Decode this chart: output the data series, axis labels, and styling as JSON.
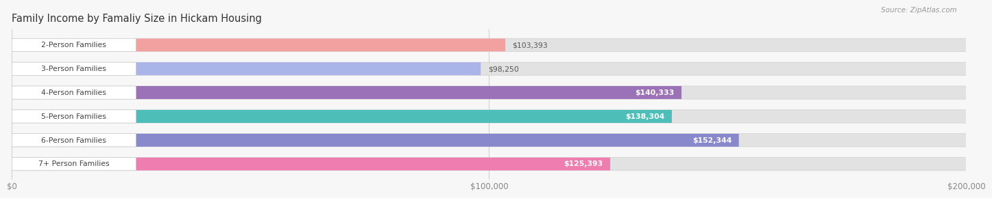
{
  "title": "Family Income by Famaliy Size in Hickam Housing",
  "source": "Source: ZipAtlas.com",
  "categories": [
    "2-Person Families",
    "3-Person Families",
    "4-Person Families",
    "5-Person Families",
    "6-Person Families",
    "7+ Person Families"
  ],
  "values": [
    103393,
    98250,
    140333,
    138304,
    152344,
    125393
  ],
  "bar_colors": [
    "#f2a0a0",
    "#aab4e8",
    "#9b72b8",
    "#4dbfb8",
    "#8888cc",
    "#f07db0"
  ],
  "label_colors": [
    "#444444",
    "#444444",
    "#ffffff",
    "#ffffff",
    "#ffffff",
    "#ffffff"
  ],
  "value_labels": [
    "$103,393",
    "$98,250",
    "$140,333",
    "$138,304",
    "$152,344",
    "$125,393"
  ],
  "xlim": [
    0,
    200000
  ],
  "xticks": [
    0,
    100000,
    200000
  ],
  "xtick_labels": [
    "$0",
    "$100,000",
    "$200,000"
  ],
  "background_color": "#f7f7f7",
  "bar_bg_color": "#e2e2e2",
  "title_fontsize": 10.5,
  "source_fontsize": 7.5,
  "bar_height": 0.55,
  "bar_spacing": 1.0
}
